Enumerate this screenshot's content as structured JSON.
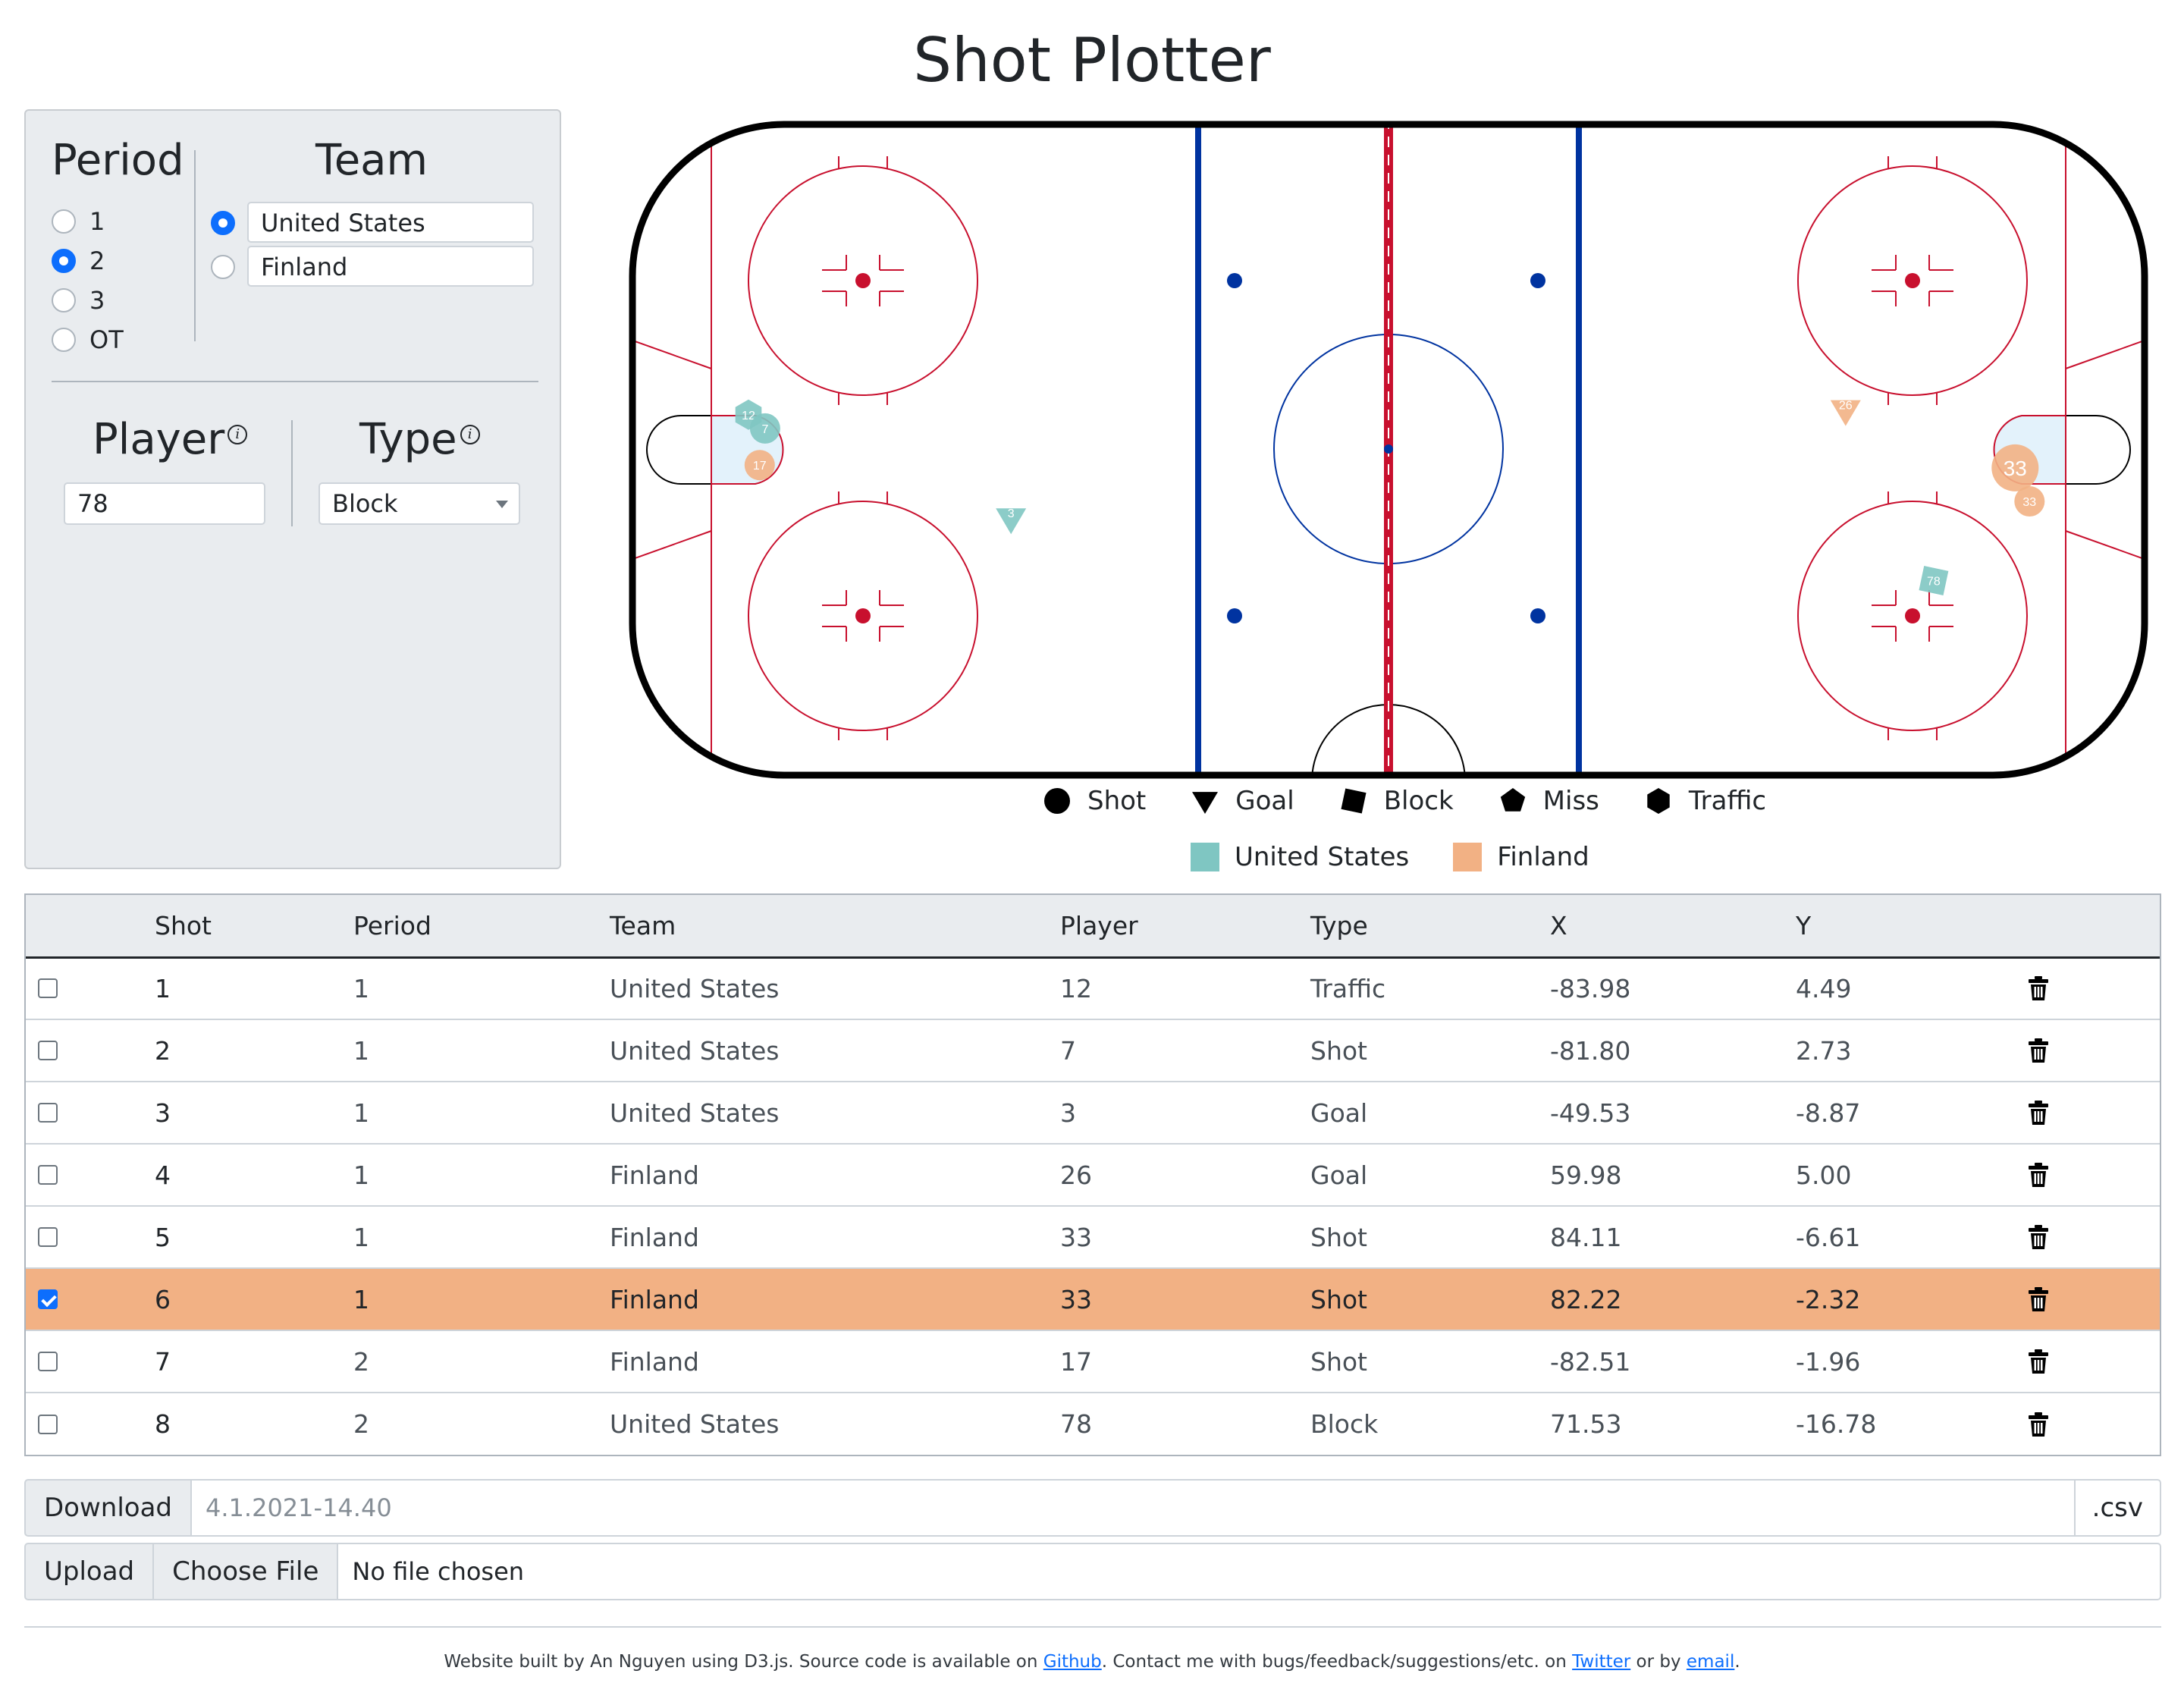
{
  "app": {
    "title": "Shot Plotter"
  },
  "controls": {
    "period": {
      "heading": "Period",
      "options": [
        "1",
        "2",
        "3",
        "OT"
      ],
      "selected": "2"
    },
    "team": {
      "heading": "Team",
      "options": [
        "United States",
        "Finland"
      ],
      "selected": "United States"
    },
    "player": {
      "heading": "Player",
      "info_icon": "info-icon",
      "value": "78"
    },
    "type": {
      "heading": "Type",
      "info_icon": "info-icon",
      "value": "Block"
    }
  },
  "legend": {
    "types": [
      {
        "label": "Shot",
        "icon": "circle"
      },
      {
        "label": "Goal",
        "icon": "triangle-down"
      },
      {
        "label": "Block",
        "icon": "square"
      },
      {
        "label": "Miss",
        "icon": "pentagon"
      },
      {
        "label": "Traffic",
        "icon": "hexagon"
      }
    ],
    "teams": [
      {
        "label": "United States",
        "color": "#7fc6c2"
      },
      {
        "label": "Finland",
        "color": "#f2b184"
      }
    ]
  },
  "rink_markers": [
    {
      "player": "12",
      "team": "United States",
      "type": "Traffic",
      "x": -83.98,
      "y": 4.49
    },
    {
      "player": "7",
      "team": "United States",
      "type": "Shot",
      "x": -81.8,
      "y": 2.73
    },
    {
      "player": "3",
      "team": "United States",
      "type": "Goal",
      "x": -49.53,
      "y": -8.87
    },
    {
      "player": "26",
      "team": "Finland",
      "type": "Goal",
      "x": 59.98,
      "y": 5.0
    },
    {
      "player": "33",
      "team": "Finland",
      "type": "Shot",
      "x": 84.11,
      "y": -6.61
    },
    {
      "player": "33",
      "team": "Finland",
      "type": "Shot",
      "x": 82.22,
      "y": -2.32,
      "selected": true
    },
    {
      "player": "17",
      "team": "Finland",
      "type": "Shot",
      "x": -82.51,
      "y": -1.96
    },
    {
      "player": "78",
      "team": "United States",
      "type": "Block",
      "x": 71.53,
      "y": -16.78
    }
  ],
  "table": {
    "headers": [
      "",
      "Shot",
      "Period",
      "Team",
      "Player",
      "Type",
      "X",
      "Y",
      ""
    ],
    "rows": [
      {
        "checked": false,
        "shot": "1",
        "period": "1",
        "team": "United States",
        "player": "12",
        "type": "Traffic",
        "x": "-83.98",
        "y": "4.49"
      },
      {
        "checked": false,
        "shot": "2",
        "period": "1",
        "team": "United States",
        "player": "7",
        "type": "Shot",
        "x": "-81.80",
        "y": "2.73"
      },
      {
        "checked": false,
        "shot": "3",
        "period": "1",
        "team": "United States",
        "player": "3",
        "type": "Goal",
        "x": "-49.53",
        "y": "-8.87"
      },
      {
        "checked": false,
        "shot": "4",
        "period": "1",
        "team": "Finland",
        "player": "26",
        "type": "Goal",
        "x": "59.98",
        "y": "5.00"
      },
      {
        "checked": false,
        "shot": "5",
        "period": "1",
        "team": "Finland",
        "player": "33",
        "type": "Shot",
        "x": "84.11",
        "y": "-6.61"
      },
      {
        "checked": true,
        "shot": "6",
        "period": "1",
        "team": "Finland",
        "player": "33",
        "type": "Shot",
        "x": "82.22",
        "y": "-2.32"
      },
      {
        "checked": false,
        "shot": "7",
        "period": "2",
        "team": "Finland",
        "player": "17",
        "type": "Shot",
        "x": "-82.51",
        "y": "-1.96"
      },
      {
        "checked": false,
        "shot": "8",
        "period": "2",
        "team": "United States",
        "player": "78",
        "type": "Block",
        "x": "71.53",
        "y": "-16.78"
      }
    ]
  },
  "download": {
    "label": "Download",
    "placeholder": "4.1.2021-14.40",
    "suffix": ".csv"
  },
  "upload": {
    "label": "Upload",
    "button": "Choose File",
    "status": "No file chosen"
  },
  "footer": {
    "text_1": "Website built by An Nguyen using D3.js. Source code is available on ",
    "link_github": "Github",
    "text_2": ". Contact me with bugs/feedback/suggestions/etc. on ",
    "link_twitter": "Twitter",
    "text_3": " or by ",
    "link_email": "email",
    "text_4": "."
  }
}
